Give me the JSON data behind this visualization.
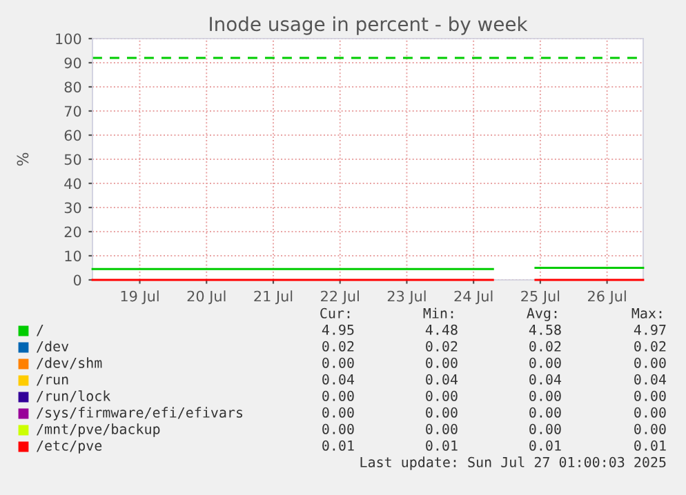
{
  "chart_data": {
    "type": "line",
    "title": "Inode usage in percent - by week",
    "ylabel": "%",
    "x": [
      "2025-07-18T19:00",
      "2025-07-24T19:00",
      "2025-07-25T00:00",
      "2025-07-25T10:15",
      "2025-07-27T01:00"
    ],
    "series": [
      {
        "name": "/",
        "color": "#00cc00",
        "values": [
          4.5,
          4.5,
          null,
          5,
          5
        ]
      },
      {
        "name": "/dev",
        "color": "#0066b3",
        "values": [
          null,
          null,
          null,
          null,
          null
        ]
      },
      {
        "name": "/dev/shm",
        "color": "#ff8000",
        "values": [
          null,
          null,
          null,
          null,
          null
        ]
      },
      {
        "name": "/run",
        "color": "#ffcc00",
        "values": [
          null,
          null,
          null,
          null,
          null
        ]
      },
      {
        "name": "/run/lock",
        "color": "#330099",
        "values": [
          null,
          null,
          null,
          null,
          null
        ]
      },
      {
        "name": "/sys/firmware/efi/efivars",
        "color": "#990099",
        "values": [
          null,
          null,
          null,
          null,
          null
        ]
      },
      {
        "name": "/mnt/pve/backup",
        "color": "#ccff00",
        "values": [
          null,
          null,
          null,
          null,
          null
        ]
      },
      {
        "name": "/etc/pve",
        "color": "#ff0000",
        "values": [
          0,
          0,
          null,
          0,
          0
        ]
      }
    ],
    "xlim": [
      "2025-07-18T19:00",
      "2025-07-27T01:00"
    ],
    "xticks": [
      {
        "value": "2025-07-19T12:00",
        "label": "19 Jul"
      },
      {
        "value": "2025-07-20T12:00",
        "label": "20 Jul"
      },
      {
        "value": "2025-07-21T12:00",
        "label": "21 Jul"
      },
      {
        "value": "2025-07-22T12:00",
        "label": "22 Jul"
      },
      {
        "value": "2025-07-23T12:00",
        "label": "23 Jul"
      },
      {
        "value": "2025-07-24T12:00",
        "label": "24 Jul"
      },
      {
        "value": "2025-07-25T12:00",
        "label": "25 Jul"
      },
      {
        "value": "2025-07-26T12:00",
        "label": "26 Jul"
      }
    ],
    "ylim": [
      0,
      100
    ],
    "yticks": [
      0,
      10,
      20,
      30,
      40,
      50,
      60,
      70,
      80,
      90,
      100
    ],
    "grid": true,
    "legend": "bottom",
    "line_style": "solid",
    "ref_lines": [
      {
        "axis": "y",
        "value": 92,
        "color": "#00cc00",
        "line_style": "dashed"
      }
    ],
    "annotations": [
      "Cur:",
      "Min:",
      "Avg:",
      "Max:",
      "4.95",
      "4.48",
      "4.58",
      "4.97",
      "0.02",
      "0.02",
      "0.02",
      "0.02",
      "0.00",
      "0.00",
      "0.00",
      "0.00",
      "0.04",
      "0.04",
      "0.04",
      "0.04",
      "0.00",
      "0.00",
      "0.00",
      "0.00",
      "0.00",
      "0.00",
      "0.00",
      "0.00",
      "0.00",
      "0.00",
      "0.00",
      "0.00",
      "0.01",
      "0.01",
      "0.01",
      "0.01",
      "Last update: Sun Jul 27 01:00:03 2025"
    ]
  }
}
